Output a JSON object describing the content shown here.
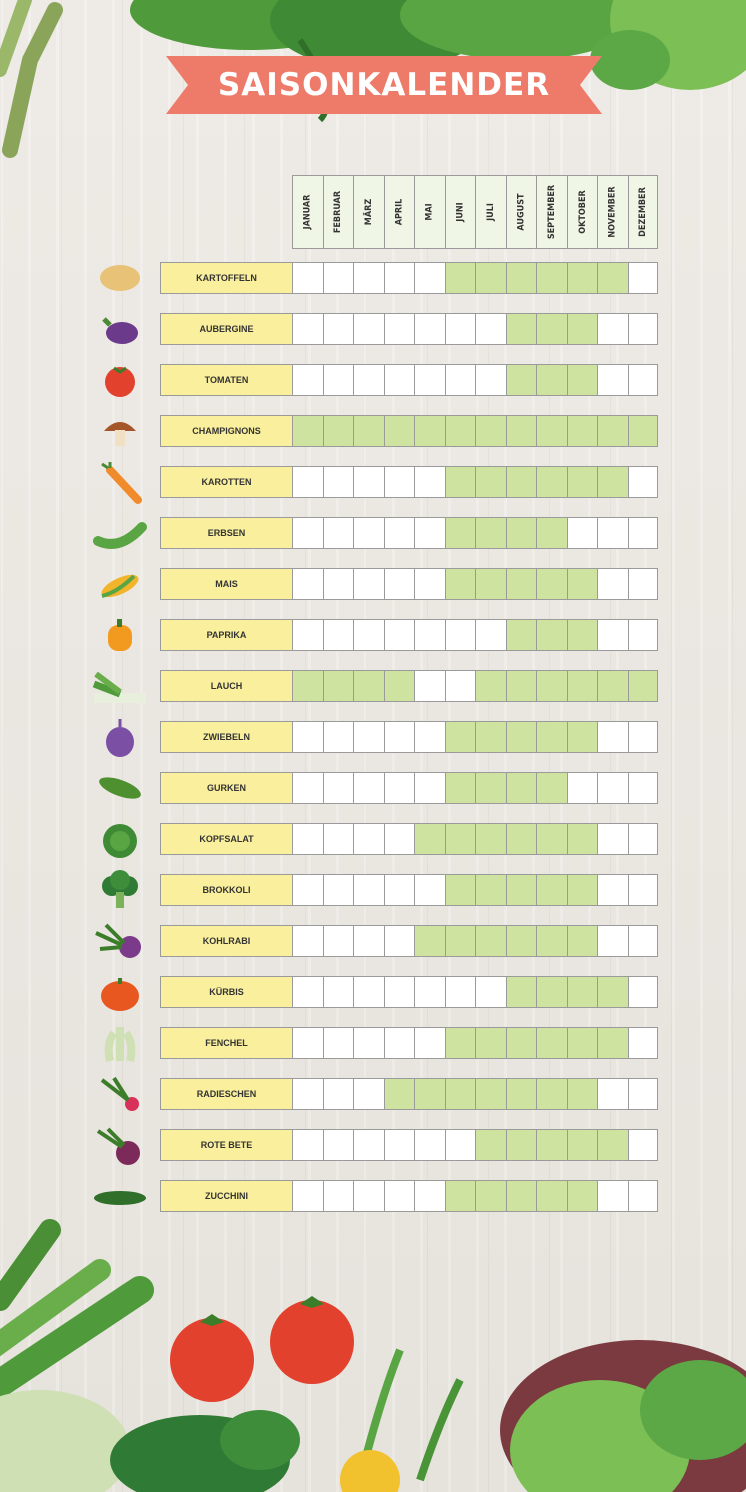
{
  "title": "SAISONKALENDER",
  "months": [
    "JANUAR",
    "FEBRUAR",
    "MÄRZ",
    "APRIL",
    "MAI",
    "JUNI",
    "JULI",
    "AUGUST",
    "SEPTEMBER",
    "OKTOBER",
    "NOVEMBER",
    "DEZEMBER"
  ],
  "vegetables": [
    {
      "name": "KARTOFFELN",
      "icon": "potato-icon",
      "season": [
        0,
        0,
        0,
        0,
        0,
        1,
        1,
        1,
        1,
        1,
        1,
        0
      ]
    },
    {
      "name": "AUBERGINE",
      "icon": "eggplant-icon",
      "season": [
        0,
        0,
        0,
        0,
        0,
        0,
        0,
        1,
        1,
        1,
        0,
        0
      ]
    },
    {
      "name": "TOMATEN",
      "icon": "tomato-icon",
      "season": [
        0,
        0,
        0,
        0,
        0,
        0,
        0,
        1,
        1,
        1,
        0,
        0
      ]
    },
    {
      "name": "CHAMPIGNONS",
      "icon": "mushroom-icon",
      "season": [
        1,
        1,
        1,
        1,
        1,
        1,
        1,
        1,
        1,
        1,
        1,
        1
      ]
    },
    {
      "name": "KAROTTEN",
      "icon": "carrot-icon",
      "season": [
        0,
        0,
        0,
        0,
        0,
        1,
        1,
        1,
        1,
        1,
        1,
        0
      ]
    },
    {
      "name": "ERBSEN",
      "icon": "peas-icon",
      "season": [
        0,
        0,
        0,
        0,
        0,
        1,
        1,
        1,
        1,
        0,
        0,
        0
      ]
    },
    {
      "name": "MAIS",
      "icon": "corn-icon",
      "season": [
        0,
        0,
        0,
        0,
        0,
        1,
        1,
        1,
        1,
        1,
        0,
        0
      ]
    },
    {
      "name": "PAPRIKA",
      "icon": "bell-pepper-icon",
      "season": [
        0,
        0,
        0,
        0,
        0,
        0,
        0,
        1,
        1,
        1,
        0,
        0
      ]
    },
    {
      "name": "LAUCH",
      "icon": "leek-icon",
      "season": [
        1,
        1,
        1,
        1,
        0,
        0,
        1,
        1,
        1,
        1,
        1,
        1
      ]
    },
    {
      "name": "ZWIEBELN",
      "icon": "onion-icon",
      "season": [
        0,
        0,
        0,
        0,
        0,
        1,
        1,
        1,
        1,
        1,
        0,
        0
      ]
    },
    {
      "name": "GURKEN",
      "icon": "cucumber-icon",
      "season": [
        0,
        0,
        0,
        0,
        0,
        1,
        1,
        1,
        1,
        0,
        0,
        0
      ]
    },
    {
      "name": "KOPFSALAT",
      "icon": "lettuce-icon",
      "season": [
        0,
        0,
        0,
        0,
        1,
        1,
        1,
        1,
        1,
        1,
        0,
        0
      ]
    },
    {
      "name": "BROKKOLI",
      "icon": "broccoli-icon",
      "season": [
        0,
        0,
        0,
        0,
        0,
        1,
        1,
        1,
        1,
        1,
        0,
        0
      ]
    },
    {
      "name": "KOHLRABI",
      "icon": "kohlrabi-icon",
      "season": [
        0,
        0,
        0,
        0,
        1,
        1,
        1,
        1,
        1,
        1,
        0,
        0
      ]
    },
    {
      "name": "KÜRBIS",
      "icon": "pumpkin-icon",
      "season": [
        0,
        0,
        0,
        0,
        0,
        0,
        0,
        1,
        1,
        1,
        1,
        0
      ]
    },
    {
      "name": "FENCHEL",
      "icon": "fennel-icon",
      "season": [
        0,
        0,
        0,
        0,
        0,
        1,
        1,
        1,
        1,
        1,
        1,
        0
      ]
    },
    {
      "name": "RADIESCHEN",
      "icon": "radish-icon",
      "season": [
        0,
        0,
        0,
        1,
        1,
        1,
        1,
        1,
        1,
        1,
        0,
        0
      ]
    },
    {
      "name": "ROTE BETE",
      "icon": "beetroot-icon",
      "season": [
        0,
        0,
        0,
        0,
        0,
        0,
        1,
        1,
        1,
        1,
        1,
        0
      ]
    },
    {
      "name": "ZUCCHINI",
      "icon": "zucchini-icon",
      "season": [
        0,
        0,
        0,
        0,
        0,
        1,
        1,
        1,
        1,
        1,
        0,
        0
      ]
    }
  ],
  "colors": {
    "banner": "#ee7b6a",
    "season_on": "#cfe3a0",
    "label_bg": "#f9ef9c",
    "month_header_bg": "#f0f6e6"
  }
}
